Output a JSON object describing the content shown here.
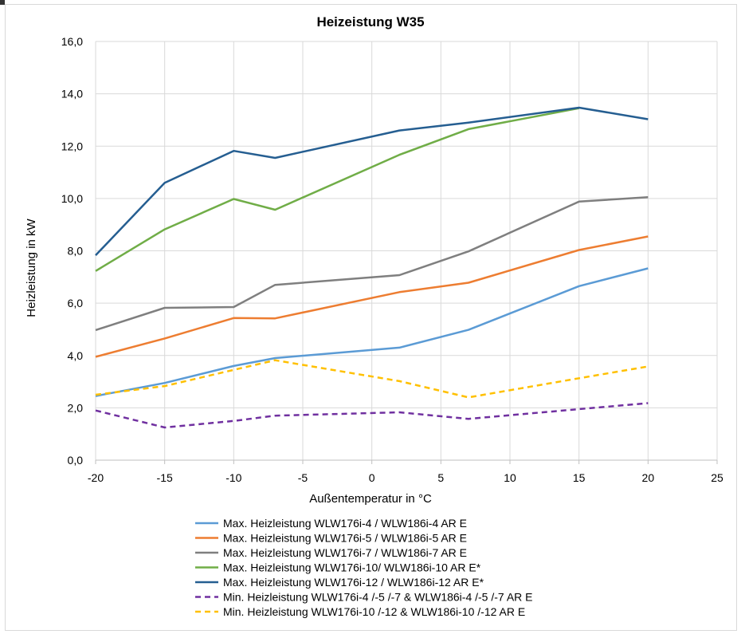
{
  "chart_data": {
    "type": "line",
    "title": "Heizeistung W35",
    "xlabel": "Außentemperatur in °C",
    "ylabel": "Heizleistung in kW",
    "xlim": [
      -20,
      25
    ],
    "ylim": [
      0,
      16
    ],
    "xticks": [
      -20,
      -15,
      -10,
      -5,
      0,
      5,
      10,
      15,
      20,
      25
    ],
    "xtick_labels": [
      "-20",
      "-15",
      "-10",
      "-5",
      "0",
      "5",
      "10",
      "15",
      "20",
      "25"
    ],
    "yticks": [
      0,
      2,
      4,
      6,
      8,
      10,
      12,
      14,
      16
    ],
    "ytick_labels": [
      "0,0",
      "2,0",
      "4,0",
      "6,0",
      "8,0",
      "10,0",
      "12,0",
      "14,0",
      "16,0"
    ],
    "grid": true,
    "legend_position": "bottom",
    "series": [
      {
        "name": "Max. Heizleistung WLW176i-4 / WLW186i-4 AR E",
        "color": "#5b9bd5",
        "dash": false,
        "x": [
          -20,
          -15,
          -10,
          -7,
          2,
          7,
          15,
          20
        ],
        "y": [
          2.45,
          2.95,
          3.6,
          3.9,
          4.3,
          4.98,
          6.65,
          7.33
        ]
      },
      {
        "name": "Max. Heizleistung WLW176i-5 / WLW186i-5 AR E",
        "color": "#ed7d31",
        "dash": false,
        "x": [
          -20,
          -15,
          -10,
          -7,
          2,
          7,
          15,
          20
        ],
        "y": [
          3.95,
          4.65,
          5.43,
          5.42,
          6.42,
          6.78,
          8.03,
          8.55
        ]
      },
      {
        "name": "Max. Heizleistung WLW176i-7 / WLW186i-7 AR E",
        "color": "#7f7f7f",
        "dash": false,
        "x": [
          -20,
          -15,
          -10,
          -7,
          2,
          7,
          15,
          20
        ],
        "y": [
          4.97,
          5.82,
          5.85,
          6.7,
          7.07,
          7.98,
          9.88,
          10.05
        ]
      },
      {
        "name": "Max. Heizleistung WLW176i-10/ WLW186i-10 AR E*",
        "color": "#70ad47",
        "dash": false,
        "x": [
          -20,
          -15,
          -10,
          -7,
          2,
          7,
          15
        ],
        "y": [
          7.23,
          8.82,
          9.98,
          9.57,
          11.67,
          12.65,
          13.45
        ]
      },
      {
        "name": "Max. Heizleistung WLW176i-12 / WLW186i-12 AR E*",
        "color": "#255e91",
        "dash": false,
        "x": [
          -20,
          -15,
          -10,
          -7,
          2,
          7,
          15,
          20
        ],
        "y": [
          7.83,
          10.6,
          11.82,
          11.55,
          12.6,
          12.9,
          13.47,
          13.03
        ]
      },
      {
        "name": "Min. Heizleistung WLW176i-4 /-5 /-7 & WLW186i-4 /-5 /-7 AR E",
        "color": "#7030a0",
        "dash": true,
        "x": [
          -20,
          -15,
          -10,
          -7,
          2,
          7,
          15,
          20
        ],
        "y": [
          1.9,
          1.25,
          1.5,
          1.7,
          1.83,
          1.58,
          1.95,
          2.18
        ]
      },
      {
        "name": "Min. Heizleistung WLW176i-10 /-12 & WLW186i-10 /-12 AR E",
        "color": "#ffc000",
        "dash": true,
        "x": [
          -20,
          -15,
          -10,
          -7,
          2,
          7,
          15,
          20
        ],
        "y": [
          2.5,
          2.83,
          3.45,
          3.82,
          3.02,
          2.4,
          3.13,
          3.58
        ]
      }
    ]
  }
}
